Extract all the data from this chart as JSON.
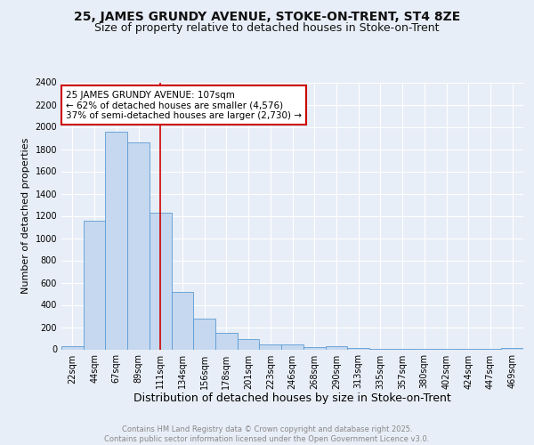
{
  "title1": "25, JAMES GRUNDY AVENUE, STOKE-ON-TRENT, ST4 8ZE",
  "title2": "Size of property relative to detached houses in Stoke-on-Trent",
  "xlabel": "Distribution of detached houses by size in Stoke-on-Trent",
  "ylabel": "Number of detached properties",
  "bar_labels": [
    "22sqm",
    "44sqm",
    "67sqm",
    "89sqm",
    "111sqm",
    "134sqm",
    "156sqm",
    "178sqm",
    "201sqm",
    "223sqm",
    "246sqm",
    "268sqm",
    "290sqm",
    "313sqm",
    "335sqm",
    "357sqm",
    "380sqm",
    "402sqm",
    "424sqm",
    "447sqm",
    "469sqm"
  ],
  "bar_values": [
    25,
    1160,
    1960,
    1860,
    1230,
    520,
    275,
    150,
    90,
    45,
    45,
    20,
    25,
    15,
    5,
    5,
    5,
    5,
    5,
    5,
    15
  ],
  "bar_color": "#c5d8ef",
  "bar_edge_color": "#5b9bd5",
  "annotation_text": "25 JAMES GRUNDY AVENUE: 107sqm\n← 62% of detached houses are smaller (4,576)\n37% of semi-detached houses are larger (2,730) →",
  "vline_x": 4.0,
  "vline_color": "#cc0000",
  "annotation_box_color": "#ffffff",
  "annotation_box_edge": "#cc0000",
  "ylim": [
    0,
    2400
  ],
  "yticks": [
    0,
    200,
    400,
    600,
    800,
    1000,
    1200,
    1400,
    1600,
    1800,
    2000,
    2200,
    2400
  ],
  "background_color": "#e8eef7",
  "plot_background": "#e8eef7",
  "grid_color": "#ffffff",
  "footer_text": "Contains HM Land Registry data © Crown copyright and database right 2025.\nContains public sector information licensed under the Open Government Licence v3.0.",
  "footer_color": "#888888",
  "title1_fontsize": 10,
  "title2_fontsize": 9,
  "xlabel_fontsize": 9,
  "ylabel_fontsize": 8,
  "tick_fontsize": 7,
  "annotation_fontsize": 7.5,
  "footer_fontsize": 6
}
